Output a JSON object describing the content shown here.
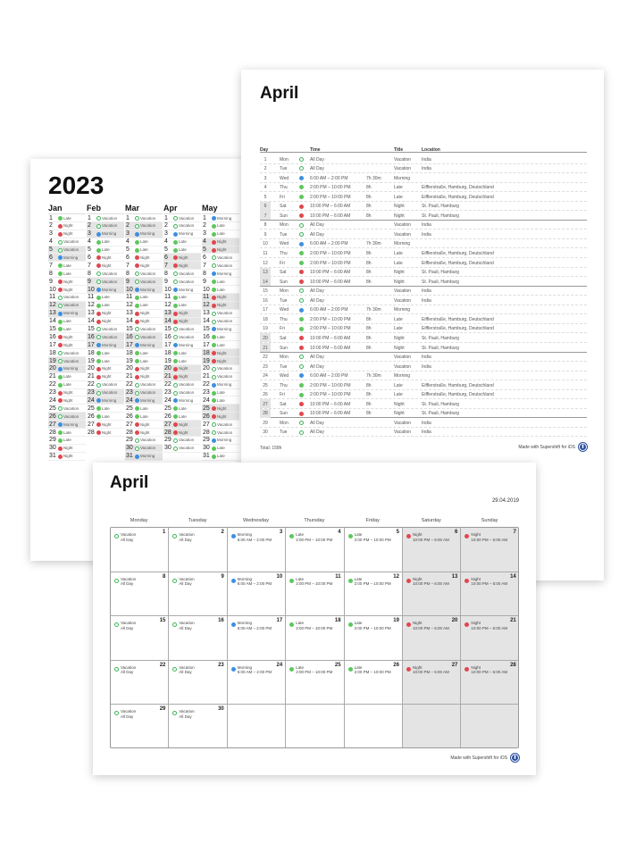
{
  "year_page": {
    "title": "2023",
    "months": [
      {
        "name": "Jan",
        "shifts": [
          "Late",
          "Night",
          "Night",
          "Vacation",
          "Vacation",
          "Morning",
          "Late",
          "Late",
          "Night",
          "Night",
          "Vacation",
          "Vacation",
          "Morning",
          "Late",
          "Late",
          "Night",
          "Night",
          "Vacation",
          "Vacation",
          "Morning",
          "Late",
          "Late",
          "Night",
          "Night",
          "Vacation",
          "Vacation",
          "Morning",
          "Late",
          "Late",
          "Night",
          "Night"
        ],
        "weekends": [
          5,
          6,
          12,
          13,
          19,
          20,
          26,
          27
        ]
      },
      {
        "name": "Feb",
        "shifts": [
          "Vacation",
          "Vacation",
          "Morning",
          "Late",
          "Late",
          "Night",
          "Night",
          "Vacation",
          "Vacation",
          "Morning",
          "Late",
          "Late",
          "Night",
          "Night",
          "Vacation",
          "Vacation",
          "Morning",
          "Late",
          "Late",
          "Night",
          "Night",
          "Vacation",
          "Vacation",
          "Morning",
          "Late",
          "Late",
          "Night",
          "Night"
        ],
        "weekends": [
          2,
          3,
          9,
          10,
          16,
          17,
          23,
          24
        ]
      },
      {
        "name": "Mar",
        "shifts": [
          "Vacation",
          "Vacation",
          "Morning",
          "Late",
          "Late",
          "Night",
          "Night",
          "Vacation",
          "Vacation",
          "Morning",
          "Late",
          "Late",
          "Night",
          "Night",
          "Vacation",
          "Vacation",
          "Morning",
          "Late",
          "Late",
          "Night",
          "Night",
          "Vacation",
          "Vacation",
          "Morning",
          "Late",
          "Late",
          "Night",
          "Night",
          "Vacation",
          "Vacation",
          "Morning"
        ],
        "weekends": [
          2,
          3,
          9,
          10,
          16,
          17,
          23,
          24,
          30,
          31
        ]
      },
      {
        "name": "Apr",
        "shifts": [
          "Vacation",
          "Vacation",
          "Morning",
          "Late",
          "Late",
          "Night",
          "Night",
          "Vacation",
          "Vacation",
          "Morning",
          "Late",
          "Late",
          "Night",
          "Night",
          "Vacation",
          "Vacation",
          "Morning",
          "Late",
          "Late",
          "Night",
          "Night",
          "Vacation",
          "Vacation",
          "Morning",
          "Late",
          "Late",
          "Night",
          "Night",
          "Vacation",
          "Vacation"
        ],
        "weekends": [
          6,
          7,
          13,
          14,
          20,
          21,
          27,
          28
        ]
      },
      {
        "name": "May",
        "shifts": [
          "Morning",
          "Late",
          "Late",
          "Night",
          "Night",
          "Vacation",
          "Vacation",
          "Morning",
          "Late",
          "Late",
          "Night",
          "Night",
          "Vacation",
          "Vacation",
          "Morning",
          "Late",
          "Late",
          "Night",
          "Night",
          "Vacation",
          "Vacation",
          "Morning",
          "Late",
          "Late",
          "Night",
          "Night",
          "Vacation",
          "Vacation",
          "Morning",
          "Late",
          "Late"
        ],
        "weekends": [
          4,
          5,
          11,
          12,
          18,
          19,
          25,
          26
        ]
      }
    ]
  },
  "list_page": {
    "title": "April",
    "headers": {
      "day": "Day",
      "time": "Time",
      "title": "Title",
      "location": "Location"
    },
    "shift_types": {
      "Vacation": {
        "time": "All Day",
        "duration": "",
        "location": "India"
      },
      "Morning": {
        "time": "6:00 AM – 2:00 PM",
        "duration": "7h 30m",
        "location": ""
      },
      "Late": {
        "time": "2:00 PM – 10:00 PM",
        "duration": "8h",
        "location": "Eifflerstraße, Hamburg, Deutschland"
      },
      "Night": {
        "time": "10:00 PM – 6:00 AM",
        "duration": "8h",
        "location": "St. Pauli, Hamburg"
      }
    },
    "rows": [
      {
        "day": "1",
        "wd": "Mon",
        "shift": "Vacation"
      },
      {
        "day": "2",
        "wd": "Tue",
        "shift": "Vacation"
      },
      {
        "day": "3",
        "wd": "Wed",
        "shift": "Morning"
      },
      {
        "day": "4",
        "wd": "Thu",
        "shift": "Late"
      },
      {
        "day": "5",
        "wd": "Fri",
        "shift": "Late"
      },
      {
        "day": "6",
        "wd": "Sat",
        "shift": "Night"
      },
      {
        "day": "7",
        "wd": "Sun",
        "shift": "Night"
      },
      {
        "day": "8",
        "wd": "Mon",
        "shift": "Vacation"
      },
      {
        "day": "9",
        "wd": "Tue",
        "shift": "Vacation"
      },
      {
        "day": "10",
        "wd": "Wed",
        "shift": "Morning"
      },
      {
        "day": "11",
        "wd": "Thu",
        "shift": "Late"
      },
      {
        "day": "12",
        "wd": "Fri",
        "shift": "Late"
      },
      {
        "day": "13",
        "wd": "Sat",
        "shift": "Night"
      },
      {
        "day": "14",
        "wd": "Sun",
        "shift": "Night"
      },
      {
        "day": "15",
        "wd": "Mon",
        "shift": "Vacation"
      },
      {
        "day": "16",
        "wd": "Tue",
        "shift": "Vacation"
      },
      {
        "day": "17",
        "wd": "Wed",
        "shift": "Morning"
      },
      {
        "day": "18",
        "wd": "Thu",
        "shift": "Late"
      },
      {
        "day": "19",
        "wd": "Fri",
        "shift": "Late"
      },
      {
        "day": "20",
        "wd": "Sat",
        "shift": "Night"
      },
      {
        "day": "21",
        "wd": "Sun",
        "shift": "Night"
      },
      {
        "day": "22",
        "wd": "Mon",
        "shift": "Vacation"
      },
      {
        "day": "23",
        "wd": "Tue",
        "shift": "Vacation"
      },
      {
        "day": "24",
        "wd": "Wed",
        "shift": "Morning"
      },
      {
        "day": "25",
        "wd": "Thu",
        "shift": "Late"
      },
      {
        "day": "26",
        "wd": "Fri",
        "shift": "Late"
      },
      {
        "day": "27",
        "wd": "Sat",
        "shift": "Night"
      },
      {
        "day": "28",
        "wd": "Sun",
        "shift": "Night"
      },
      {
        "day": "29",
        "wd": "Mon",
        "shift": "Vacation"
      },
      {
        "day": "30",
        "wd": "Tue",
        "shift": "Vacation"
      }
    ],
    "total": "Total: 158h",
    "footer": "Made with Supershift for iOS"
  },
  "month_page": {
    "title": "April",
    "date": "29.04.2019",
    "weekdays": [
      "Monday",
      "Tuesday",
      "Wednesday",
      "Thursday",
      "Friday",
      "Saturday",
      "Sunday"
    ],
    "weekly_pattern": [
      "Vacation",
      "Vacation",
      "Morning",
      "Late",
      "Late",
      "Night",
      "Night"
    ],
    "cell_times": {
      "Vacation": "All Day",
      "Morning": "6:00 AM – 2:00 PM",
      "Late": "2:00 PM – 10:00 PM",
      "Night": "10:00 PM – 6:00 AM"
    },
    "days_in_month": 30,
    "footer": "Made with Supershift for iOS"
  },
  "colors": {
    "Late": "#5cc85c",
    "Vacation": "#3fb55a",
    "Morning": "#3d8fe0",
    "Night": "#e0474c",
    "weekend": "#e4e4e4",
    "logo": "#2a4fa0"
  }
}
